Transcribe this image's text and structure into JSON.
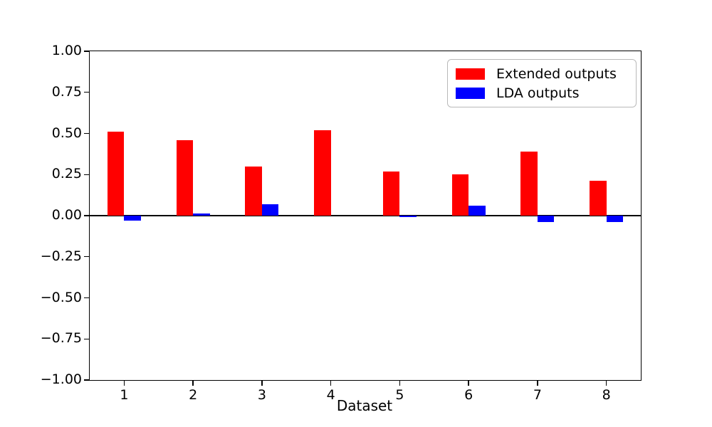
{
  "figure": {
    "background": "#ffffff"
  },
  "chart_data": {
    "type": "bar",
    "categories": [
      "1",
      "2",
      "3",
      "4",
      "5",
      "6",
      "7",
      "8"
    ],
    "series": [
      {
        "name": "Extended outputs",
        "color": "#ff0000",
        "values": [
          0.51,
          0.46,
          0.3,
          0.52,
          0.27,
          0.25,
          0.39,
          0.21
        ]
      },
      {
        "name": "LDA outputs",
        "color": "#0000ff",
        "values": [
          -0.03,
          0.015,
          0.07,
          0.0,
          -0.01,
          0.06,
          -0.04,
          -0.04
        ]
      }
    ],
    "title": "",
    "xlabel": "Dataset",
    "ylabel": "",
    "ylim": [
      -1.0,
      1.0
    ],
    "yticks": [
      1.0,
      0.75,
      0.5,
      0.25,
      0.0,
      -0.25,
      -0.5,
      -0.75,
      -1.0
    ],
    "ytick_labels": [
      "1.00",
      "0.75",
      "0.50",
      "0.25",
      "0.00",
      "−0.25",
      "−0.50",
      "−0.75",
      "−1.00"
    ],
    "grid": false,
    "zero_line": true,
    "legend_position": "upper right",
    "bar_group_width_fraction": 0.243
  }
}
